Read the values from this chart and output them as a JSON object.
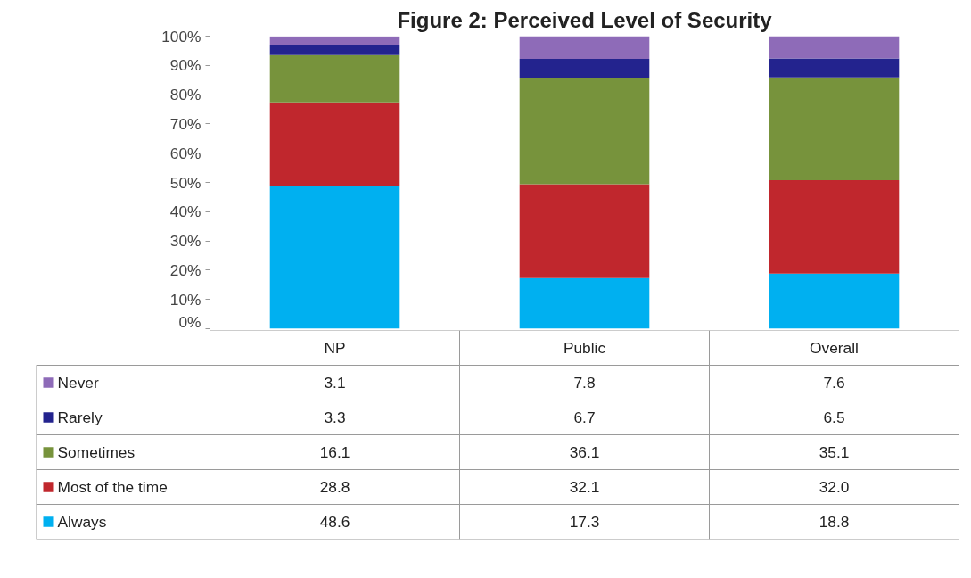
{
  "chart_data": {
    "type": "bar",
    "title": "Figure 2: Perceived Level of Security",
    "stacked": true,
    "legend": "bottom left",
    "grid": false,
    "categories": [
      "NP",
      "Public",
      "Overall"
    ],
    "ylim": [
      0,
      100
    ],
    "yticks": [
      {
        "value": 0,
        "label": "0%"
      },
      {
        "value": 10,
        "label": "10%"
      },
      {
        "value": 20,
        "label": "20%"
      },
      {
        "value": 30,
        "label": "30%"
      },
      {
        "value": 40,
        "label": "40%"
      },
      {
        "value": 50,
        "label": "50%"
      },
      {
        "value": 60,
        "label": "60%"
      },
      {
        "value": 70,
        "label": "70%"
      },
      {
        "value": 80,
        "label": "80%"
      },
      {
        "value": 90,
        "label": "90%"
      },
      {
        "value": 100,
        "label": "100%"
      }
    ],
    "series": [
      {
        "name": "Always",
        "color": "#00b0f0",
        "values": [
          48.6,
          17.3,
          18.8
        ],
        "value_labels": [
          "48.6",
          "17.3",
          "18.8"
        ]
      },
      {
        "name": "Most of the time",
        "color": "#c0272d",
        "values": [
          28.8,
          32.1,
          32.0
        ],
        "value_labels": [
          "28.8",
          "32.1",
          "32.0"
        ]
      },
      {
        "name": "Sometimes",
        "color": "#77933c",
        "values": [
          16.1,
          36.1,
          35.1
        ],
        "value_labels": [
          "16.1",
          "36.1",
          "35.1"
        ]
      },
      {
        "name": "Rarely",
        "color": "#23238e",
        "values": [
          3.3,
          6.7,
          6.5
        ],
        "value_labels": [
          "3.3",
          "6.7",
          "6.5"
        ]
      },
      {
        "name": "Never",
        "color": "#8e6bb8",
        "values": [
          3.1,
          7.8,
          7.6
        ],
        "value_labels": [
          "3.1",
          "7.8",
          "7.6"
        ]
      }
    ]
  }
}
